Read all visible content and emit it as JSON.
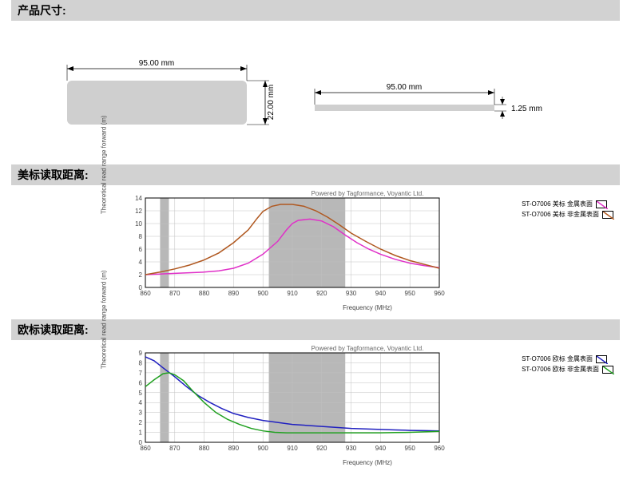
{
  "section_titles": {
    "dimensions": "产品尺寸:",
    "us_range": "美标读取距离:",
    "eu_range": "欧标读取距离:"
  },
  "credit": "Powered by Tagformance, Voyantic Ltd.",
  "axis": {
    "x_label": "Frequency (MHz)",
    "y_label": "Theoretical read range forward (m)",
    "x_ticks": [
      860,
      870,
      880,
      890,
      900,
      910,
      920,
      930,
      940,
      950,
      960
    ]
  },
  "dimensions": {
    "width_label": "95.00 mm",
    "height_label": "22.00 mm",
    "thickness_label": "1.25 mm"
  },
  "chart_us": {
    "ylim": [
      0,
      14
    ],
    "ytick_step": 2,
    "bands": [
      [
        865,
        868
      ],
      [
        902,
        928
      ]
    ],
    "series": [
      {
        "label": "ST-O7006 美标 金属表面",
        "color": "#e030c8",
        "points": [
          [
            860,
            2.0
          ],
          [
            865,
            2.1
          ],
          [
            870,
            2.2
          ],
          [
            875,
            2.3
          ],
          [
            880,
            2.4
          ],
          [
            885,
            2.6
          ],
          [
            890,
            3.0
          ],
          [
            895,
            3.8
          ],
          [
            900,
            5.2
          ],
          [
            905,
            7.2
          ],
          [
            908,
            9.0
          ],
          [
            910,
            10.0
          ],
          [
            912,
            10.5
          ],
          [
            916,
            10.7
          ],
          [
            920,
            10.4
          ],
          [
            924,
            9.5
          ],
          [
            928,
            8.2
          ],
          [
            932,
            7.0
          ],
          [
            936,
            6.0
          ],
          [
            940,
            5.2
          ],
          [
            945,
            4.4
          ],
          [
            950,
            3.8
          ],
          [
            955,
            3.4
          ],
          [
            960,
            3.1
          ]
        ]
      },
      {
        "label": "ST-O7006 美标 非金属表面",
        "color": "#b05820",
        "points": [
          [
            860,
            2.0
          ],
          [
            865,
            2.4
          ],
          [
            870,
            2.9
          ],
          [
            875,
            3.5
          ],
          [
            880,
            4.3
          ],
          [
            885,
            5.4
          ],
          [
            890,
            7.0
          ],
          [
            895,
            9.0
          ],
          [
            898,
            10.8
          ],
          [
            900,
            11.9
          ],
          [
            903,
            12.7
          ],
          [
            906,
            13.0
          ],
          [
            910,
            13.0
          ],
          [
            914,
            12.7
          ],
          [
            918,
            12.0
          ],
          [
            922,
            11.0
          ],
          [
            926,
            9.8
          ],
          [
            930,
            8.5
          ],
          [
            935,
            7.2
          ],
          [
            940,
            6.0
          ],
          [
            945,
            5.0
          ],
          [
            950,
            4.2
          ],
          [
            955,
            3.6
          ],
          [
            960,
            3.0
          ]
        ]
      }
    ]
  },
  "chart_eu": {
    "ylim": [
      0,
      9
    ],
    "ytick_step": 1,
    "bands": [
      [
        865,
        868
      ],
      [
        902,
        928
      ]
    ],
    "series": [
      {
        "label": "ST-O7006 欧标 金属表面",
        "color": "#2020c0",
        "points": [
          [
            860,
            8.6
          ],
          [
            863,
            8.2
          ],
          [
            866,
            7.5
          ],
          [
            870,
            6.6
          ],
          [
            874,
            5.6
          ],
          [
            878,
            4.7
          ],
          [
            882,
            4.0
          ],
          [
            886,
            3.4
          ],
          [
            890,
            2.9
          ],
          [
            895,
            2.5
          ],
          [
            900,
            2.2
          ],
          [
            905,
            2.0
          ],
          [
            910,
            1.8
          ],
          [
            915,
            1.7
          ],
          [
            920,
            1.6
          ],
          [
            925,
            1.5
          ],
          [
            930,
            1.4
          ],
          [
            935,
            1.35
          ],
          [
            940,
            1.3
          ],
          [
            945,
            1.25
          ],
          [
            950,
            1.2
          ],
          [
            955,
            1.18
          ],
          [
            960,
            1.15
          ]
        ]
      },
      {
        "label": "ST-O7006 欧标 非金属表面",
        "color": "#20a020",
        "points": [
          [
            860,
            5.6
          ],
          [
            863,
            6.3
          ],
          [
            866,
            6.9
          ],
          [
            868,
            7.0
          ],
          [
            870,
            6.8
          ],
          [
            873,
            6.2
          ],
          [
            876,
            5.2
          ],
          [
            880,
            4.0
          ],
          [
            884,
            3.0
          ],
          [
            888,
            2.3
          ],
          [
            892,
            1.8
          ],
          [
            896,
            1.4
          ],
          [
            900,
            1.15
          ],
          [
            904,
            1.0
          ],
          [
            908,
            0.95
          ],
          [
            912,
            0.95
          ],
          [
            916,
            0.95
          ],
          [
            920,
            0.95
          ],
          [
            925,
            0.95
          ],
          [
            930,
            0.95
          ],
          [
            935,
            0.95
          ],
          [
            940,
            0.95
          ],
          [
            945,
            0.98
          ],
          [
            950,
            1.0
          ],
          [
            955,
            1.05
          ],
          [
            960,
            1.1
          ]
        ]
      }
    ]
  },
  "colors": {
    "grid": "#c0c0c0",
    "band": "#b8b8b8",
    "axis": "#000000",
    "shape_fill": "#cfcfcf"
  }
}
